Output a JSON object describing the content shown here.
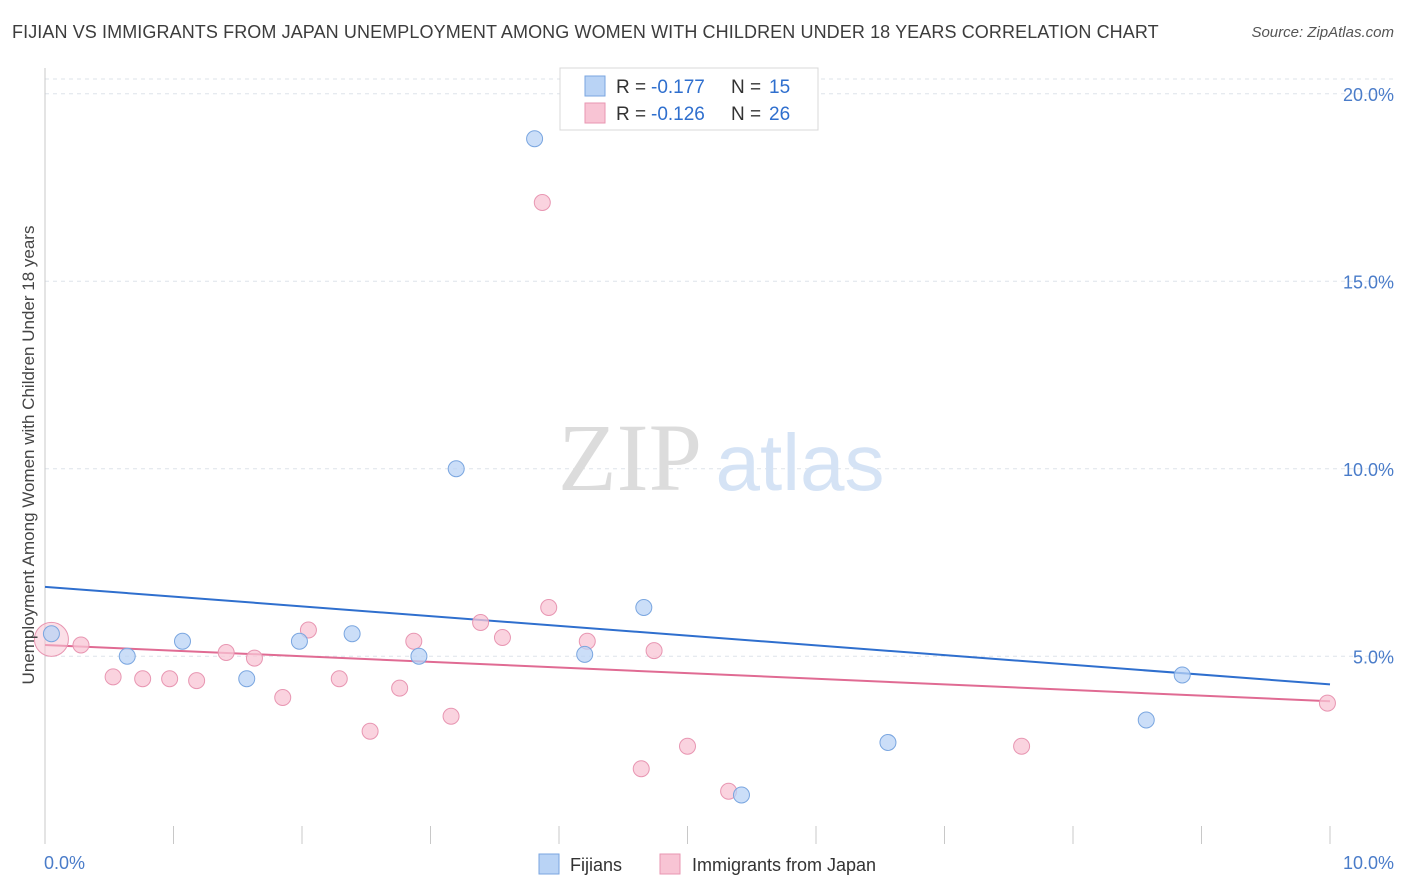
{
  "title": "FIJIAN VS IMMIGRANTS FROM JAPAN UNEMPLOYMENT AMONG WOMEN WITH CHILDREN UNDER 18 YEARS CORRELATION CHART",
  "source": "Source: ZipAtlas.com",
  "watermark": {
    "zip": "ZIP",
    "atlas": "atlas"
  },
  "colors": {
    "fijians_fill": "#b9d3f5",
    "fijians_stroke": "#7aa6e0",
    "fijians_line": "#2f6fce",
    "japan_fill": "#f8c4d4",
    "japan_stroke": "#e896b2",
    "japan_line": "#e06b93",
    "axis_text": "#4a7cc9",
    "grid": "#dde3ea"
  },
  "legend": {
    "r_label": "R =",
    "n_label": "N =",
    "rows": [
      {
        "r": "-0.177",
        "n": "15"
      },
      {
        "r": "-0.126",
        "n": "26"
      }
    ]
  },
  "chart_data": {
    "type": "scatter",
    "ylabel": "Unemployment Among Women with Children Under 18 years",
    "xlim": [
      0,
      10
    ],
    "ylim": [
      0.5,
      20.5
    ],
    "x_tick_labels": [
      "0.0%",
      "10.0%"
    ],
    "y_ticks": [
      5,
      10,
      15,
      20
    ],
    "y_tick_labels": [
      "5.0%",
      "10.0%",
      "15.0%",
      "20.0%"
    ],
    "grid": true,
    "legend_position": "top-center",
    "series": [
      {
        "name": "Fijians",
        "points": [
          {
            "x": 0.05,
            "y": 5.6
          },
          {
            "x": 0.64,
            "y": 5.0
          },
          {
            "x": 1.07,
            "y": 5.4
          },
          {
            "x": 1.57,
            "y": 4.4
          },
          {
            "x": 1.98,
            "y": 5.4
          },
          {
            "x": 2.39,
            "y": 5.6
          },
          {
            "x": 2.91,
            "y": 5.0
          },
          {
            "x": 3.2,
            "y": 10.0
          },
          {
            "x": 3.81,
            "y": 18.8
          },
          {
            "x": 4.2,
            "y": 5.05
          },
          {
            "x": 4.66,
            "y": 6.3
          },
          {
            "x": 5.42,
            "y": 1.3
          },
          {
            "x": 6.56,
            "y": 2.7
          },
          {
            "x": 8.57,
            "y": 3.3
          },
          {
            "x": 8.85,
            "y": 4.5
          }
        ],
        "trend": {
          "x": [
            0,
            10
          ],
          "y": [
            6.85,
            4.25
          ]
        }
      },
      {
        "name": "Immigrants from Japan",
        "points": [
          {
            "x": 0.05,
            "y": 5.45,
            "big": true
          },
          {
            "x": 0.28,
            "y": 5.3
          },
          {
            "x": 0.53,
            "y": 4.45
          },
          {
            "x": 0.76,
            "y": 4.4
          },
          {
            "x": 0.97,
            "y": 4.4
          },
          {
            "x": 1.18,
            "y": 4.35
          },
          {
            "x": 1.41,
            "y": 5.1
          },
          {
            "x": 1.63,
            "y": 4.95
          },
          {
            "x": 1.85,
            "y": 3.9
          },
          {
            "x": 2.05,
            "y": 5.7
          },
          {
            "x": 2.29,
            "y": 4.4
          },
          {
            "x": 2.53,
            "y": 3.0
          },
          {
            "x": 2.76,
            "y": 4.15
          },
          {
            "x": 2.87,
            "y": 5.4
          },
          {
            "x": 3.16,
            "y": 3.4
          },
          {
            "x": 3.39,
            "y": 5.9
          },
          {
            "x": 3.56,
            "y": 5.5
          },
          {
            "x": 3.87,
            "y": 17.1
          },
          {
            "x": 3.92,
            "y": 6.3
          },
          {
            "x": 4.22,
            "y": 5.4
          },
          {
            "x": 4.64,
            "y": 2.0
          },
          {
            "x": 4.74,
            "y": 5.15
          },
          {
            "x": 5.0,
            "y": 2.6
          },
          {
            "x": 5.32,
            "y": 1.4
          },
          {
            "x": 7.6,
            "y": 2.6
          },
          {
            "x": 9.98,
            "y": 3.75
          }
        ],
        "trend": {
          "x": [
            0,
            10
          ],
          "y": [
            5.3,
            3.8
          ]
        }
      }
    ]
  }
}
